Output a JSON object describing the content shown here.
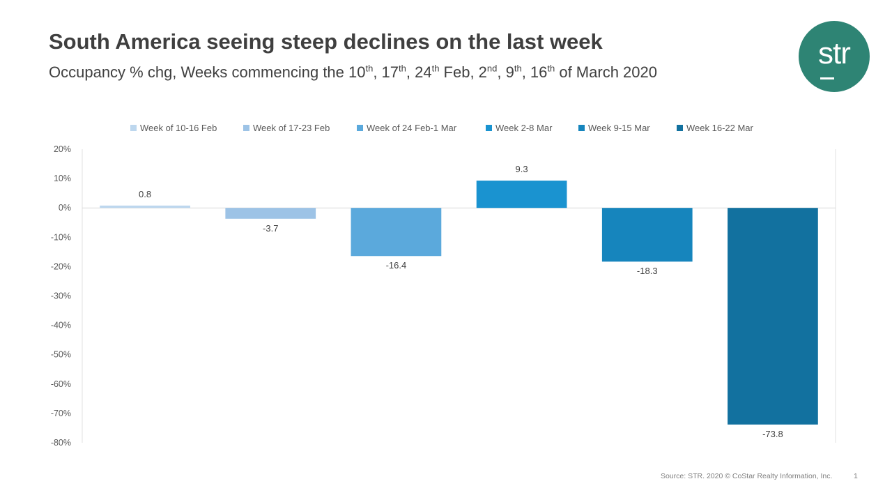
{
  "header": {
    "title": "South America seeing steep declines on the last week",
    "subtitle": {
      "prefix": "Occupancy % chg, Weeks commencing the 10",
      "sup1": "th",
      "t1": ", 17",
      "sup2": "th",
      "t2": ", 24",
      "sup3": "th",
      "t3": " Feb, 2",
      "sup4": "nd",
      "t4": ", 9",
      "sup5": "th",
      "t5": ", 16",
      "sup6": "th",
      "t6": " of March 2020"
    }
  },
  "logo": {
    "text": "str",
    "color": "#2e8474"
  },
  "chart_data": {
    "type": "bar",
    "title": "",
    "xlabel": "",
    "ylabel": "",
    "ylim": [
      -80,
      20
    ],
    "yticks": [
      20,
      10,
      0,
      -10,
      -20,
      -30,
      -40,
      -50,
      -60,
      -70,
      -80
    ],
    "tick_labels": [
      "20%",
      "10%",
      "0%",
      "-10%",
      "-20%",
      "-30%",
      "-40%",
      "-50%",
      "-60%",
      "-70%",
      "-80%"
    ],
    "legend_position": "top-center",
    "series": [
      {
        "name": "Week of 10-16 Feb",
        "value": 0.8,
        "label": "0.8",
        "color": "#bdd7ee"
      },
      {
        "name": "Week of 17-23 Feb",
        "value": -3.7,
        "label": "-3.7",
        "color": "#9dc3e6"
      },
      {
        "name": "Week of 24 Feb-1 Mar",
        "value": -16.4,
        "label": "-16.4",
        "color": "#5ba9dc"
      },
      {
        "name": "Week 2-8 Mar",
        "value": 9.3,
        "label": "9.3",
        "color": "#1a93d0"
      },
      {
        "name": "Week 9-15 Mar",
        "value": -18.3,
        "label": "-18.3",
        "color": "#1685bd"
      },
      {
        "name": "Week 16-22 Mar",
        "value": -73.8,
        "label": "-73.8",
        "color": "#12719f"
      }
    ]
  },
  "footer": {
    "source": "Source: STR. 2020 © CoStar Realty Information, Inc.",
    "page": "1"
  }
}
